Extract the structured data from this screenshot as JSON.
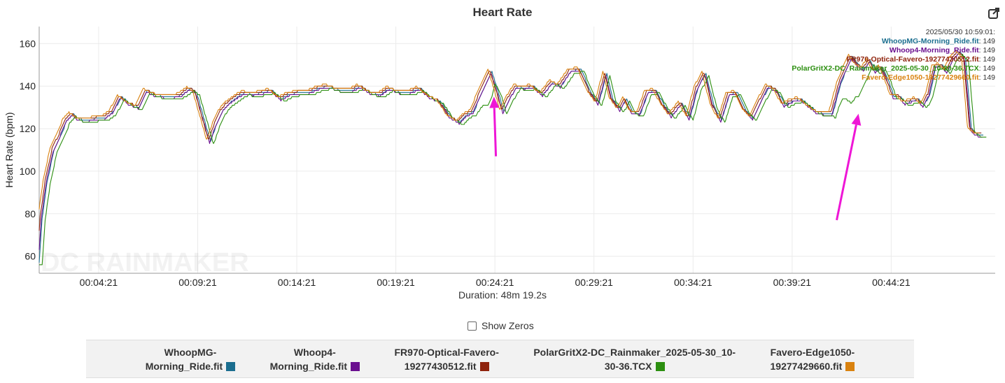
{
  "header": {
    "title": "Heart Rate"
  },
  "footer": {
    "duration": "Duration: 48m 19.2s",
    "show_zeros_label": "Show Zeros"
  },
  "tooltip": {
    "timestamp": "2025/05/30 10:59:01:",
    "entries": [
      {
        "name": "WhoopMG-Morning_Ride.fit",
        "value": "149",
        "color": "#1b6e8f"
      },
      {
        "name": "Whoop4-Morning_Ride.fit",
        "value": "149",
        "color": "#6a0f8f"
      },
      {
        "name": "FR970-Optical-Favero-19277430512.fit",
        "value": "149",
        "color": "#8f230c"
      },
      {
        "name": "PolarGritX2-DC_Rainmaker_2025-05-30_10-30-36.TCX",
        "value": "149",
        "color": "#2c8f10"
      },
      {
        "name": "Favero-Edge1050-19277429660.fit",
        "value": "149",
        "color": "#d9820f"
      }
    ]
  },
  "watermark": "DC RAINMAKER",
  "legend": {
    "items": [
      {
        "line1": "WhoopMG-",
        "line2": "Morning_Ride.fit",
        "color": "#1b6e8f"
      },
      {
        "line1": "Whoop4-",
        "line2": "Morning_Ride.fit",
        "color": "#6a0f8f"
      },
      {
        "line1": "FR970-Optical-Favero-",
        "line2": "19277430512.fit",
        "color": "#8f230c"
      },
      {
        "line1": "PolarGritX2-DC_Rainmaker_2025-05-30_10-",
        "line2": "30-36.TCX",
        "color": "#2c8f10"
      },
      {
        "line1": "Favero-Edge1050-",
        "line2": "19277429660.fit",
        "color": "#d9820f"
      }
    ]
  },
  "chart_data": {
    "type": "line",
    "title": "Heart Rate",
    "xlabel": "",
    "ylabel": "Heart Rate (bpm)",
    "x_unit": "minutes",
    "xlim": [
      1.35,
      49.6
    ],
    "ylim": [
      52,
      168
    ],
    "yticks": [
      60,
      80,
      100,
      120,
      140,
      160
    ],
    "xticks": [
      {
        "value": 4.35,
        "label": "00:04:21"
      },
      {
        "value": 9.35,
        "label": "00:09:21"
      },
      {
        "value": 14.35,
        "label": "00:14:21"
      },
      {
        "value": 19.35,
        "label": "00:19:21"
      },
      {
        "value": 24.35,
        "label": "00:24:21"
      },
      {
        "value": 29.35,
        "label": "00:29:21"
      },
      {
        "value": 34.35,
        "label": "00:34:21"
      },
      {
        "value": 39.35,
        "label": "00:39:21"
      },
      {
        "value": 44.35,
        "label": "00:44:21"
      }
    ],
    "grid": true,
    "baseline": {
      "x": [
        1.35,
        1.5,
        1.75,
        2.1,
        2.45,
        2.75,
        3.05,
        3.3,
        3.6,
        3.9,
        4.3,
        4.7,
        5.1,
        5.5,
        5.9,
        6.4,
        6.8,
        7.2,
        7.7,
        8.2,
        8.6,
        9.0,
        9.3,
        9.6,
        10.0,
        10.3,
        10.6,
        10.85,
        11.1,
        11.4,
        11.8,
        12.2,
        12.7,
        13.1,
        13.6,
        14.0,
        14.5,
        15.0,
        15.5,
        16.0,
        16.6,
        17.2,
        17.6,
        18.1,
        18.6,
        19.1,
        19.6,
        20.1,
        20.6,
        21.1,
        21.6,
        22.1,
        22.6,
        22.9,
        23.3,
        23.6,
        23.9,
        24.2,
        24.5,
        24.8,
        25.1,
        25.5,
        25.9,
        26.3,
        26.8,
        27.3,
        27.7,
        28.2,
        28.7,
        29.2,
        29.6,
        30.0,
        30.3,
        30.7,
        31.0,
        31.3,
        31.7,
        32.1,
        32.5,
        32.9,
        33.3,
        33.8,
        34.2,
        34.6,
        35.0,
        35.4,
        35.8,
        36.2,
        36.6,
        37.0,
        37.4,
        37.8,
        38.2,
        38.6,
        39.0,
        39.4,
        39.8,
        40.2,
        40.6,
        41.0,
        41.4,
        41.8,
        42.1,
        42.4,
        42.7,
        43.0,
        43.3,
        43.6,
        43.9,
        44.2,
        44.5,
        44.8,
        45.1,
        45.4,
        45.7,
        46.0,
        46.3,
        46.6,
        46.9,
        47.2,
        47.5,
        47.8,
        48.1,
        48.4,
        48.6,
        48.8,
        49.0,
        49.3,
        49.6
      ],
      "hr": [
        57,
        78,
        95,
        110,
        117,
        124,
        127,
        125,
        124,
        124,
        125,
        125,
        128,
        135,
        132,
        130,
        138,
        136,
        135,
        135,
        136,
        139,
        137,
        127,
        114,
        122,
        128,
        131,
        133,
        135,
        137,
        136,
        137,
        138,
        134,
        136,
        137,
        137,
        139,
        140,
        138,
        138,
        140,
        137,
        136,
        139,
        137,
        137,
        139,
        135,
        133,
        126,
        123,
        126,
        128,
        135,
        141,
        147,
        138,
        128,
        134,
        140,
        139,
        140,
        136,
        142,
        140,
        147,
        148,
        137,
        132,
        146,
        134,
        129,
        134,
        128,
        127,
        137,
        138,
        131,
        126,
        132,
        125,
        139,
        146,
        131,
        124,
        136,
        137,
        129,
        125,
        133,
        140,
        138,
        131,
        133,
        134,
        131,
        128,
        127,
        127,
        141,
        148,
        154,
        150,
        148,
        152,
        147,
        149,
        143,
        135,
        135,
        132,
        133,
        134,
        131,
        136,
        149,
        150,
        147,
        153,
        156,
        153,
        120,
        118,
        117,
        117
      ]
    },
    "series": [
      {
        "name": "WhoopMG-Morning_Ride.fit",
        "color": "#1b6e8f",
        "offset": 0.0,
        "shift": 0.0
      },
      {
        "name": "Whoop4-Morning_Ride.fit",
        "color": "#6a0f8f",
        "offset": -0.6,
        "shift": 0.05
      },
      {
        "name": "FR970-Optical-Favero-19277430512.fit",
        "color": "#8f230c",
        "offset": 0.5,
        "shift": 0.1
      },
      {
        "name": "PolarGritX2-DC_Rainmaker_2025-05-30_10-30-36.TCX",
        "color": "#2c8f10",
        "offset": -1.2,
        "shift": -0.15,
        "dips": [
          {
            "x": 24.1,
            "depth": 8,
            "width": 0.35
          },
          {
            "x": 42.5,
            "depth": 18,
            "width": 0.5
          }
        ]
      },
      {
        "name": "Favero-Edge1050-19277429660.fit",
        "color": "#d9820f",
        "offset": 0.8,
        "shift": 0.2
      }
    ],
    "annotations": [
      {
        "type": "arrow",
        "from": [
          24.4,
          107
        ],
        "to": [
          24.3,
          135
        ],
        "color": "#ee16d6"
      },
      {
        "type": "arrow",
        "from": [
          41.6,
          77
        ],
        "to": [
          42.7,
          127
        ],
        "color": "#ee16d6"
      }
    ]
  }
}
